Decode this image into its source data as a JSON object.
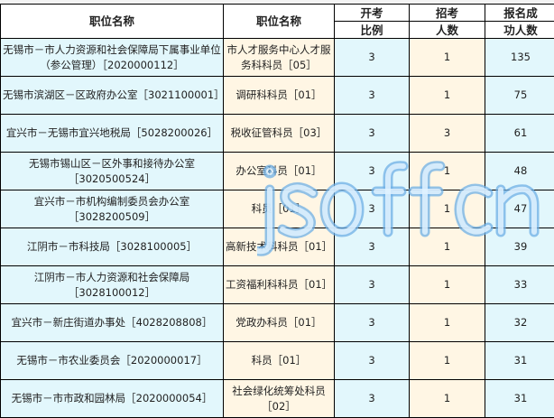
{
  "headers": {
    "col1": "职位名称",
    "col2": "职位名称",
    "col3_line1": "开考",
    "col3_line2": "比例",
    "col4_line1": "招考",
    "col4_line2": "人数",
    "col5_line1": "报名成",
    "col5_line2": "功人数"
  },
  "rows": [
    {
      "unit": "无锡市－市人力资源和社会保障局下属事业单位（参公管理）［2020000112］",
      "position": "市人才服务中心人才服务科科员［05］",
      "ratio": "3",
      "quota": "1",
      "applicants": "135"
    },
    {
      "unit": "无锡市滨湖区－区政府办公室［3021100001］",
      "position": "调研科科员［01］",
      "ratio": "3",
      "quota": "1",
      "applicants": "75"
    },
    {
      "unit": "宜兴市－无锡市宜兴地税局［5028200026］",
      "position": "税收征管科员［03］",
      "ratio": "3",
      "quota": "3",
      "applicants": "61"
    },
    {
      "unit": "无锡市锡山区－区外事和接待办公室［3020500524］",
      "position": "办公室科员［01］",
      "ratio": "3",
      "quota": "1",
      "applicants": "48"
    },
    {
      "unit": "宜兴市－市机构编制委员会办公室［3028200509］",
      "position": "科员［01］",
      "ratio": "3",
      "quota": "1",
      "applicants": "47"
    },
    {
      "unit": "江阴市－市科技局［3028100005］",
      "position": "高新技术科科员［01］",
      "ratio": "3",
      "quota": "1",
      "applicants": "39"
    },
    {
      "unit": "江阴市－市人力资源和社会保障局［3028100012］",
      "position": "工资福利科科员［01］",
      "ratio": "3",
      "quota": "1",
      "applicants": "33"
    },
    {
      "unit": "宜兴市－新庄街道办事处［4028208808］",
      "position": "党政办科员［01］",
      "ratio": "3",
      "quota": "1",
      "applicants": "32"
    },
    {
      "unit": "无锡市－市农业委员会［2020000017］",
      "position": "科员［01］",
      "ratio": "3",
      "quota": "1",
      "applicants": "31"
    },
    {
      "unit": "无锡市－市市政和园林局［2020000054］",
      "position": "社会绿化统筹处科员［02］",
      "ratio": "3",
      "quota": "1",
      "applicants": "31"
    }
  ],
  "watermark": "jsoffcn",
  "colors": {
    "blue_cell": "#e2f7fc",
    "cream_cell": "#fff6e4"
  }
}
